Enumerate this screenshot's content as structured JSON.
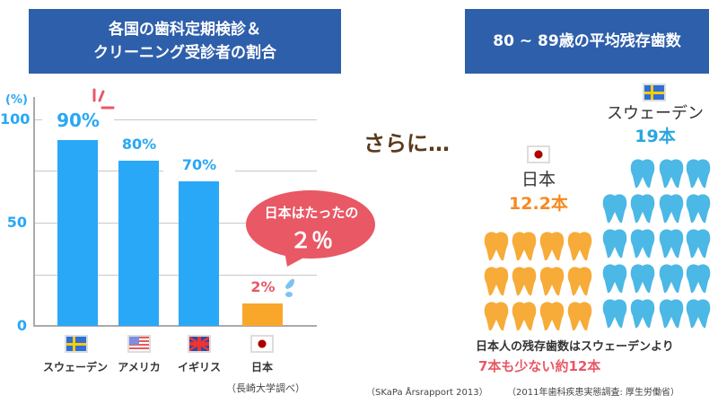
{
  "left_header": {
    "line1": "各国の歯科定期検診＆",
    "line2": "クリーニング受診者の割合"
  },
  "right_header": {
    "title": "80 ~ 89歳の平均残存歯数"
  },
  "chart_data": {
    "type": "bar",
    "ylabel": "(%)",
    "ylim": [
      0,
      100
    ],
    "yticks": [
      "100",
      "50",
      "0"
    ],
    "categories": [
      "スウェーデン",
      "アメリカ",
      "イギリス",
      "日本"
    ],
    "values": [
      90,
      80,
      70,
      2
    ],
    "data_labels": [
      "90%",
      "80%",
      "70%",
      "2%"
    ],
    "colors": [
      "#29a8f8",
      "#29a8f8",
      "#29a8f8",
      "#f9a72b"
    ],
    "grid": true,
    "source": "（長崎大学調べ）"
  },
  "bubble": {
    "line1": "日本はたったの",
    "line2": "２％",
    "color": "#e85865"
  },
  "middle_text": "さらに…",
  "teeth": {
    "japan": {
      "name": "日本",
      "count_label": "12.2本",
      "teeth_shown": 12,
      "color": "#f7ab38"
    },
    "sweden": {
      "name": "スウェーデン",
      "count_label": "19本",
      "teeth_shown": 19,
      "color": "#4bb8e6"
    }
  },
  "conclusion": {
    "line1": "日本人の残存歯数はスウェーデンより",
    "line2": "7本も少ない約12本"
  },
  "sources": {
    "left": "（SKaPa Årsrapport 2013）",
    "right": "（2011年歯科疾患実態調査: 厚生労働省）"
  }
}
